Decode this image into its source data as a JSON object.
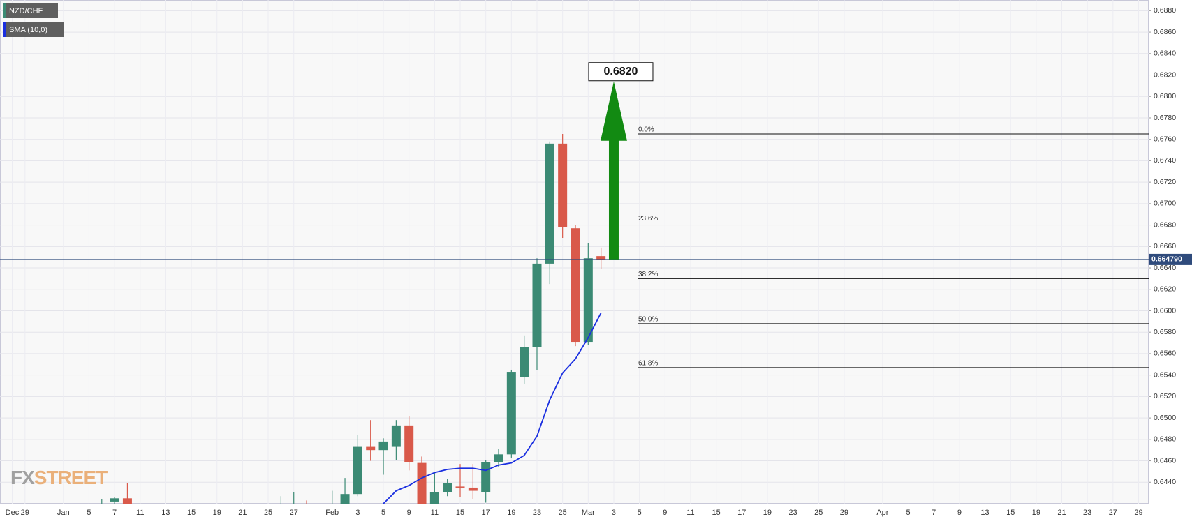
{
  "chart_data": {
    "type": "candlestick",
    "categories": [
      "Dec",
      "29",
      null,
      null,
      "Jan",
      null,
      "5",
      null,
      "7",
      null,
      "11",
      null,
      "13",
      null,
      "15",
      null,
      "19",
      null,
      "21",
      null,
      "25",
      null,
      "27",
      null,
      null,
      "Feb",
      null,
      "3",
      null,
      "5",
      null,
      "9",
      null,
      "11",
      null,
      "15",
      null,
      "17",
      null,
      "19",
      null,
      "23",
      null,
      "25",
      null,
      "Mar",
      null,
      "3",
      null,
      "5",
      null,
      "9",
      null,
      "11",
      null,
      "15",
      null,
      "17",
      null,
      "19",
      null,
      "23",
      null,
      "25",
      null,
      "29",
      null,
      null,
      "Apr",
      null,
      "5",
      null,
      "7",
      null,
      "9",
      null,
      "13",
      null,
      "15",
      null,
      "19",
      null,
      "21",
      null,
      "23",
      null,
      "27",
      null,
      "29"
    ],
    "series": [
      {
        "name": "NZD/CHF",
        "up_color": "#3b8a74",
        "down_color": "#d9594a",
        "open": [
          null,
          null,
          null,
          null,
          null,
          null,
          null,
          0.6415,
          0.6422,
          0.6425,
          null,
          null,
          null,
          null,
          null,
          null,
          null,
          null,
          null,
          null,
          null,
          0.6408,
          0.6412,
          0.6418,
          null,
          0.641,
          0.6415,
          0.6429,
          0.6473,
          0.647,
          0.6473,
          0.6493,
          0.6458,
          0.6418,
          0.6431,
          0.6436,
          0.6435,
          0.6431,
          0.6459,
          0.6466,
          0.6538,
          0.6566,
          0.6644,
          0.6756,
          0.6677,
          0.6571,
          0.6651,
          null,
          null,
          null,
          null,
          null,
          null,
          null,
          null,
          null,
          null,
          null,
          null,
          null,
          null,
          null,
          null,
          null,
          null,
          null,
          null,
          null,
          null,
          null,
          null,
          null,
          null,
          null,
          null,
          null,
          null,
          null,
          null,
          null,
          null,
          null,
          null,
          null,
          null,
          null,
          null,
          null,
          null
        ],
        "high": [
          null,
          null,
          null,
          null,
          null,
          null,
          null,
          0.6424,
          0.6426,
          0.6439,
          null,
          null,
          null,
          null,
          null,
          null,
          null,
          null,
          null,
          null,
          null,
          0.6427,
          0.6431,
          0.6423,
          null,
          0.6432,
          0.6444,
          0.6484,
          0.6498,
          0.6481,
          0.6498,
          0.6502,
          0.6464,
          0.6449,
          0.6443,
          0.6457,
          0.6457,
          0.6461,
          0.6471,
          0.6545,
          0.6577,
          0.6649,
          0.6758,
          0.6765,
          0.668,
          0.6663,
          0.6659,
          null,
          null,
          null,
          null,
          null,
          null,
          null,
          null,
          null,
          null,
          null,
          null,
          null,
          null,
          null,
          null,
          null,
          null,
          null,
          null,
          null,
          null,
          null,
          null,
          null,
          null,
          null,
          null,
          null,
          null,
          null,
          null,
          null,
          null,
          null,
          null,
          null,
          null,
          null,
          null,
          null,
          null
        ],
        "low": [
          null,
          null,
          null,
          null,
          null,
          null,
          null,
          0.6405,
          0.641,
          0.6405,
          null,
          null,
          null,
          null,
          null,
          null,
          null,
          null,
          null,
          null,
          null,
          0.64,
          0.6402,
          0.6405,
          null,
          0.64,
          0.641,
          0.6427,
          0.646,
          0.6447,
          0.6461,
          0.6451,
          0.641,
          0.6412,
          0.6427,
          0.6426,
          0.6424,
          0.6421,
          0.6454,
          0.6463,
          0.6532,
          0.6545,
          0.6625,
          0.6668,
          0.6567,
          0.6568,
          0.6639,
          null,
          null,
          null,
          null,
          null,
          null,
          null,
          null,
          null,
          null,
          null,
          null,
          null,
          null,
          null,
          null,
          null,
          null,
          null,
          null,
          null,
          null,
          null,
          null,
          null,
          null,
          null,
          null,
          null,
          null,
          null,
          null,
          null,
          null,
          null,
          null,
          null,
          null,
          null,
          null,
          null,
          null
        ],
        "close": [
          null,
          null,
          null,
          null,
          null,
          null,
          null,
          0.6418,
          0.6425,
          0.6418,
          null,
          null,
          null,
          null,
          null,
          null,
          null,
          null,
          null,
          null,
          null,
          0.6412,
          0.6418,
          0.6412,
          null,
          0.6415,
          0.6429,
          0.6473,
          0.647,
          0.6478,
          0.6493,
          0.6459,
          0.6418,
          0.6431,
          0.6439,
          0.6435,
          0.6432,
          0.6459,
          0.6466,
          0.6543,
          0.6566,
          0.6644,
          0.6756,
          0.6678,
          0.6571,
          0.6649,
          0.6648,
          null,
          null,
          null,
          null,
          null,
          null,
          null,
          null,
          null,
          null,
          null,
          null,
          null,
          null,
          null,
          null,
          null,
          null,
          null,
          null,
          null,
          null,
          null,
          null,
          null,
          null,
          null,
          null,
          null,
          null,
          null,
          null,
          null,
          null,
          null,
          null,
          null,
          null,
          null,
          null,
          null,
          null
        ]
      },
      {
        "name": "SMA (10,0)",
        "color": "#1a2fe0",
        "values": [
          null,
          null,
          null,
          null,
          null,
          null,
          null,
          null,
          null,
          null,
          null,
          null,
          null,
          null,
          null,
          null,
          null,
          null,
          null,
          null,
          null,
          null,
          null,
          null,
          null,
          null,
          null,
          null,
          null,
          0.642,
          0.6432,
          0.6437,
          0.6444,
          0.6449,
          0.6452,
          0.6453,
          0.6453,
          0.6451,
          0.6456,
          0.6458,
          0.6465,
          0.6483,
          0.6517,
          0.6542,
          0.6555,
          0.6575,
          0.6598,
          null,
          null,
          null,
          null,
          null,
          null,
          null,
          null,
          null,
          null,
          null,
          null,
          null,
          null,
          null,
          null,
          null,
          null,
          null,
          null,
          null,
          null,
          null,
          null,
          null,
          null,
          null,
          null,
          null,
          null,
          null,
          null,
          null,
          null,
          null,
          null,
          null,
          null,
          null,
          null,
          null,
          null
        ]
      }
    ],
    "ylim": [
      0.642,
      0.689
    ],
    "yticks": [
      {
        "value": 0.644,
        "label": "0.6440"
      },
      {
        "value": 0.646,
        "label": "0.6460"
      },
      {
        "value": 0.648,
        "label": "0.6480"
      },
      {
        "value": 0.65,
        "label": "0.6500"
      },
      {
        "value": 0.652,
        "label": "0.6520"
      },
      {
        "value": 0.654,
        "label": "0.6540"
      },
      {
        "value": 0.656,
        "label": "0.6560"
      },
      {
        "value": 0.658,
        "label": "0.6580"
      },
      {
        "value": 0.66,
        "label": "0.6600"
      },
      {
        "value": 0.662,
        "label": "0.6620"
      },
      {
        "value": 0.664,
        "label": "0.6640"
      },
      {
        "value": 0.666,
        "label": "0.6660"
      },
      {
        "value": 0.668,
        "label": "0.6680"
      },
      {
        "value": 0.67,
        "label": "0.6700"
      },
      {
        "value": 0.672,
        "label": "0.6720"
      },
      {
        "value": 0.674,
        "label": "0.6740"
      },
      {
        "value": 0.676,
        "label": "0.6760"
      },
      {
        "value": 0.678,
        "label": "0.6780"
      },
      {
        "value": 0.68,
        "label": "0.6800"
      },
      {
        "value": 0.682,
        "label": "0.6820"
      },
      {
        "value": 0.684,
        "label": "0.6840"
      },
      {
        "value": 0.686,
        "label": "0.6860"
      },
      {
        "value": 0.688,
        "label": "0.6880"
      }
    ],
    "grid": true,
    "current_price": {
      "value": 0.66479,
      "label": "0.664790",
      "color": "#2f4b7c"
    },
    "fib_levels": [
      {
        "label": "0.0%",
        "value": 0.6765
      },
      {
        "label": "23.6%",
        "value": 0.6682
      },
      {
        "label": "38.2%",
        "value": 0.663
      },
      {
        "label": "50.0%",
        "value": 0.6588
      },
      {
        "label": "61.8%",
        "value": 0.6547
      }
    ],
    "target": {
      "label": "0.6820",
      "arrow_from": 0.6648,
      "arrow_to": 0.6814,
      "color": "#128a12"
    },
    "watermark": [
      "FX",
      "STREET"
    ]
  }
}
